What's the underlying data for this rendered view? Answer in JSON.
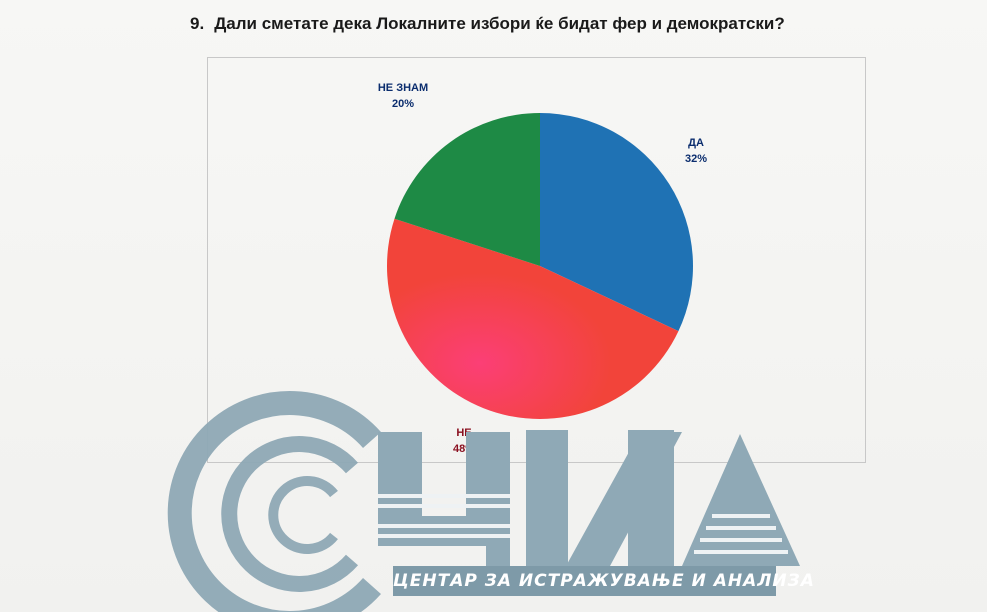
{
  "question": {
    "number": "9.",
    "text": "Дали сметате дека Локалните избори ќе бидат фер и демократски?"
  },
  "chart_data": {
    "type": "pie",
    "categories": [
      "ДА",
      "НЕ",
      "НЕ ЗНАМ"
    ],
    "values": [
      32,
      48,
      20
    ],
    "labels": [
      "32%",
      "48%",
      "20%"
    ],
    "colors": [
      "#1f72b4",
      "#f2443a",
      "#1e8a45"
    ],
    "label_colors": [
      "#0b2d6e",
      "#8a1020",
      "#0b2d6e"
    ],
    "start_angle_deg": 0,
    "direction": "clockwise"
  },
  "logo": {
    "banner_text": "ЦЕНТАР ЗА ИСТРАЖУВАЊЕ И АНАЛИЗА",
    "color": "#8fa9b6"
  }
}
